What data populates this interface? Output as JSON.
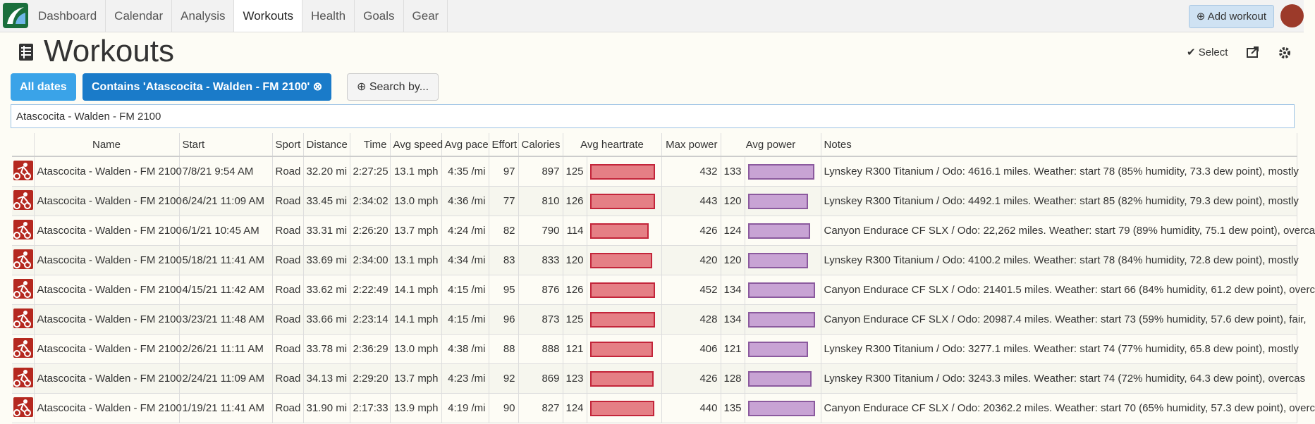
{
  "nav": {
    "tabs": [
      "Dashboard",
      "Calendar",
      "Analysis",
      "Workouts",
      "Health",
      "Goals",
      "Gear"
    ],
    "active": 3,
    "add_button": "Add workout"
  },
  "header": {
    "title": "Workouts",
    "select": "Select"
  },
  "filters": {
    "all_dates": "All dates",
    "contains": "Contains 'Atascocita - Walden - FM 2100'",
    "search_by": "Search by..."
  },
  "search": {
    "value": "Atascocita - Walden - FM 2100"
  },
  "table": {
    "columns": {
      "name": "Name",
      "start": "Start",
      "sport": "Sport",
      "distance": "Distance",
      "time": "Time",
      "avg_speed": "Avg speed",
      "avg_pace": "Avg pace",
      "effort": "Effort",
      "calories": "Calories",
      "avg_heartrate": "Avg heartrate",
      "max_power": "Max power",
      "avg_power": "Avg power",
      "notes": "Notes"
    },
    "rows": [
      {
        "name": "Atascocita - Walden - FM 2100",
        "start": "7/8/21 9:54 AM",
        "sport": "Road",
        "distance": "32.20 mi",
        "time": "2:27:25",
        "avg_speed": "13.1 mph",
        "avg_pace": "4:35 /mi",
        "effort": 97,
        "calories": 897,
        "avg_heartrate": 125,
        "max_power": 432,
        "avg_power": 133,
        "notes": "Lynskey R300 Titanium / Odo: 4616.1 miles. Weather: start 78 (85% humidity, 73.3 dew point), mostly"
      },
      {
        "name": "Atascocita - Walden - FM 2100",
        "start": "6/24/21 11:09 AM",
        "sport": "Road",
        "distance": "33.45 mi",
        "time": "2:34:02",
        "avg_speed": "13.0 mph",
        "avg_pace": "4:36 /mi",
        "effort": 77,
        "calories": 810,
        "avg_heartrate": 126,
        "max_power": 443,
        "avg_power": 120,
        "notes": "Lynskey R300 Titanium / Odo: 4492.1 miles. Weather: start 85 (82% humidity, 79.3 dew point), mostly"
      },
      {
        "name": "Atascocita - Walden - FM 2100",
        "start": "6/1/21 10:45 AM",
        "sport": "Road",
        "distance": "33.31 mi",
        "time": "2:26:20",
        "avg_speed": "13.7 mph",
        "avg_pace": "4:24 /mi",
        "effort": 82,
        "calories": 790,
        "avg_heartrate": 114,
        "max_power": 426,
        "avg_power": 124,
        "notes": "Canyon Endurace CF SLX / Odo: 22,262 miles. Weather: start 79 (89% humidity, 75.1 dew point), overca"
      },
      {
        "name": "Atascocita - Walden - FM 2100",
        "start": "5/18/21 11:41 AM",
        "sport": "Road",
        "distance": "33.69 mi",
        "time": "2:34:00",
        "avg_speed": "13.1 mph",
        "avg_pace": "4:34 /mi",
        "effort": 83,
        "calories": 833,
        "avg_heartrate": 120,
        "max_power": 420,
        "avg_power": 120,
        "notes": "Lynskey R300 Titanium / Odo: 4100.2 miles. Weather: start 78 (84% humidity, 72.8 dew point), mostly"
      },
      {
        "name": "Atascocita - Walden - FM 2100",
        "start": "4/15/21 11:42 AM",
        "sport": "Road",
        "distance": "33.62 mi",
        "time": "2:22:49",
        "avg_speed": "14.1 mph",
        "avg_pace": "4:15 /mi",
        "effort": 95,
        "calories": 876,
        "avg_heartrate": 126,
        "max_power": 452,
        "avg_power": 134,
        "notes": "Canyon Endurace CF SLX / Odo: 21401.5 miles. Weather: start 66 (84% humidity, 61.2 dew point), overc"
      },
      {
        "name": "Atascocita - Walden - FM 2100",
        "start": "3/23/21 11:48 AM",
        "sport": "Road",
        "distance": "33.66 mi",
        "time": "2:23:14",
        "avg_speed": "14.1 mph",
        "avg_pace": "4:15 /mi",
        "effort": 96,
        "calories": 873,
        "avg_heartrate": 125,
        "max_power": 428,
        "avg_power": 134,
        "notes": "Canyon Endurace CF SLX / Odo: 20987.4 miles. Weather: start 73 (59% humidity, 57.6 dew point), fair,"
      },
      {
        "name": "Atascocita - Walden - FM 2100",
        "start": "2/26/21 11:11 AM",
        "sport": "Road",
        "distance": "33.78 mi",
        "time": "2:36:29",
        "avg_speed": "13.0 mph",
        "avg_pace": "4:38 /mi",
        "effort": 88,
        "calories": 888,
        "avg_heartrate": 121,
        "max_power": 406,
        "avg_power": 121,
        "notes": "Lynskey R300 Titanium / Odo: 3277.1 miles. Weather: start 74 (77% humidity, 65.8 dew point), mostly"
      },
      {
        "name": "Atascocita - Walden - FM 2100",
        "start": "2/24/21 11:09 AM",
        "sport": "Road",
        "distance": "34.13 mi",
        "time": "2:29:20",
        "avg_speed": "13.7 mph",
        "avg_pace": "4:23 /mi",
        "effort": 92,
        "calories": 869,
        "avg_heartrate": 123,
        "max_power": 426,
        "avg_power": 128,
        "notes": "Lynskey R300 Titanium / Odo: 3243.3 miles. Weather: start 74 (72% humidity, 64.3 dew point), overcas"
      },
      {
        "name": "Atascocita - Walden - FM 2100",
        "start": "1/19/21 11:41 AM",
        "sport": "Road",
        "distance": "31.90 mi",
        "time": "2:17:33",
        "avg_speed": "13.9 mph",
        "avg_pace": "4:19 /mi",
        "effort": 90,
        "calories": 827,
        "avg_heartrate": 124,
        "max_power": 440,
        "avg_power": 135,
        "notes": "Canyon Endurace CF SLX / Odo: 20362.2 miles. Weather: start 70 (65% humidity, 57.3 dew point), overc"
      }
    ]
  }
}
